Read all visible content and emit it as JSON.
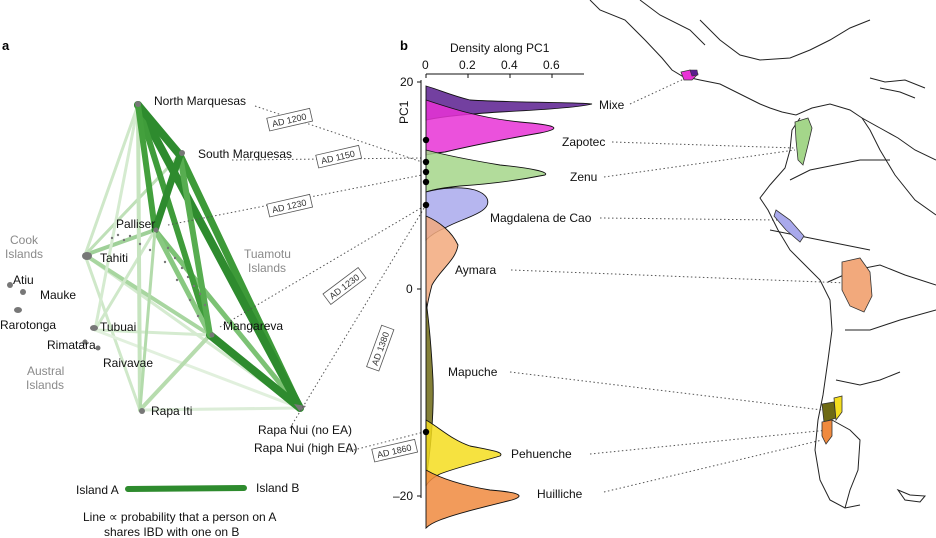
{
  "panel_a": {
    "label": "a",
    "islands": {
      "north_marquesas": "North Marquesas",
      "south_marquesas": "South Marquesas",
      "palliser": "Palliser",
      "tahiti": "Tahiti",
      "mangareva": "Mangareva",
      "tubuai": "Tubuai",
      "raivavae": "Raivavae",
      "rimatara": "Rimatara",
      "rarotonga": "Rarotonga",
      "mauke": "Mauke",
      "atiu": "Atiu",
      "rapa_iti": "Rapa Iti",
      "rapa_nui_no_ea": "Rapa Nui (no EA)",
      "rapa_nui_high_ea": "Rapa Nui (high EA)"
    },
    "groups": {
      "cook_line1": "Cook",
      "cook_line2": "Islands",
      "tuamotu_line1": "Tuamotu",
      "tuamotu_line2": "Islands",
      "austral_line1": "Austral",
      "austral_line2": "Islands"
    },
    "legend": {
      "island_a": "Island A",
      "island_b": "Island B",
      "caption_line1": "Line ∝ probability that a person on A",
      "caption_line2": "shares IBD with one on B"
    },
    "dates": {
      "d1200": "AD 1200",
      "d1150": "AD 1150",
      "d1230a": "AD 1230",
      "d1230b": "AD 1230",
      "d1380": "AD 1380",
      "d1860": "AD 1860"
    },
    "edge_color": "#2e8b2e"
  },
  "panel_b": {
    "label": "b",
    "axis_title_top": "Density along PC1",
    "axis_title_left": "PC1",
    "x_ticks": [
      "0",
      "0.2",
      "0.4",
      "0.6"
    ],
    "y_ticks": [
      "20",
      "0",
      "–20"
    ],
    "populations": [
      {
        "name": "Mixe",
        "color": "#5b1f8f"
      },
      {
        "name": "Zapotec",
        "color": "#e832d6"
      },
      {
        "name": "Zenu",
        "color": "#a4d68a"
      },
      {
        "name": "Magdalena de Cao",
        "color": "#a9a9ec"
      },
      {
        "name": "Aymara",
        "color": "#f2a97c"
      },
      {
        "name": "Mapuche",
        "color": "#6e6a14"
      },
      {
        "name": "Pehuenche",
        "color": "#f4dd1e"
      },
      {
        "name": "Huilliche",
        "color": "#f08a3e"
      }
    ]
  }
}
